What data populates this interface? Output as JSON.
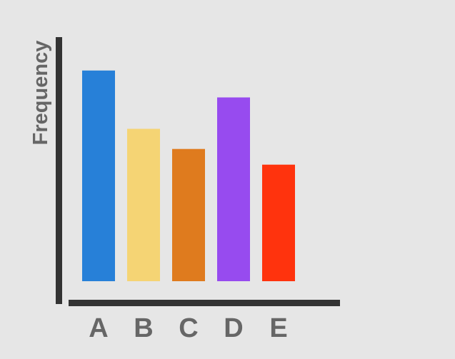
{
  "colors": {
    "background": "#e6e6e6",
    "axis": "#333333",
    "text": "#666666"
  },
  "chart_data": {
    "type": "bar",
    "title": "",
    "xlabel": "",
    "ylabel": "Frequency",
    "categories": [
      "A",
      "B",
      "C",
      "D",
      "E"
    ],
    "values": [
      9.4,
      6.8,
      5.9,
      8.2,
      5.2
    ],
    "bar_colors": [
      "#2780d8",
      "#f5d474",
      "#df7b1e",
      "#974bef",
      "#ff330d"
    ],
    "ylim": [
      0,
      10
    ],
    "grid": false,
    "legend": "none"
  }
}
